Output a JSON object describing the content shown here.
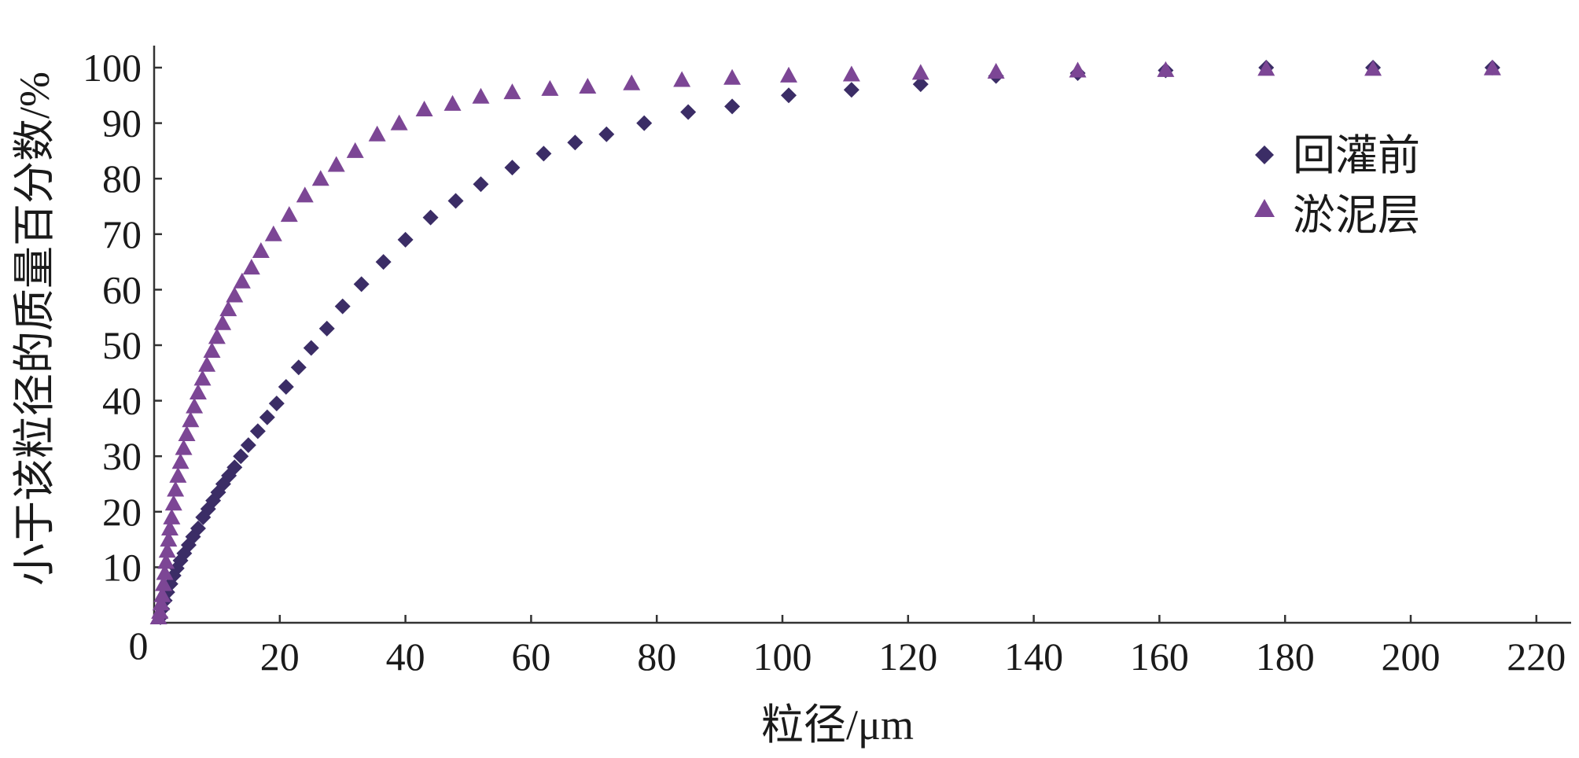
{
  "chart_data": {
    "type": "scatter",
    "xlabel": "粒径/μm",
    "ylabel": "小于该粒径的质量百分数/%",
    "origin_label": "0",
    "xlim": [
      0,
      225
    ],
    "ylim": [
      0,
      105
    ],
    "x_ticks": [
      20,
      40,
      60,
      80,
      100,
      120,
      140,
      160,
      180,
      200,
      220
    ],
    "x_tick_labels": [
      "20",
      "40",
      "60",
      "80",
      "100",
      "120",
      "140",
      "160",
      "180",
      "200",
      "220"
    ],
    "y_ticks": [
      10,
      20,
      30,
      40,
      50,
      60,
      70,
      80,
      90,
      100
    ],
    "y_tick_labels": [
      "10",
      "20",
      "30",
      "40",
      "50",
      "60",
      "70",
      "80",
      "90",
      "100"
    ],
    "legend_position": "top-right",
    "series": [
      {
        "name": "回灌前",
        "marker": "diamond",
        "color": "#3b2d66",
        "points": [
          [
            1.0,
            1.0
          ],
          [
            1.3,
            2.5
          ],
          [
            1.7,
            4.0
          ],
          [
            2.1,
            5.5
          ],
          [
            2.6,
            7.0
          ],
          [
            3.1,
            8.5
          ],
          [
            3.6,
            9.8
          ],
          [
            4.2,
            11.2
          ],
          [
            4.8,
            12.5
          ],
          [
            5.5,
            14.0
          ],
          [
            6.2,
            15.5
          ],
          [
            7.0,
            17.0
          ],
          [
            7.8,
            19.0
          ],
          [
            8.6,
            20.5
          ],
          [
            9.4,
            22.0
          ],
          [
            10.2,
            23.5
          ],
          [
            11.0,
            25.0
          ],
          [
            11.9,
            26.5
          ],
          [
            12.8,
            28.0
          ],
          [
            13.8,
            30.0
          ],
          [
            15.0,
            32.0
          ],
          [
            16.5,
            34.5
          ],
          [
            18.0,
            37.0
          ],
          [
            19.5,
            39.5
          ],
          [
            21.0,
            42.5
          ],
          [
            23.0,
            46.0
          ],
          [
            25.0,
            49.5
          ],
          [
            27.5,
            53.0
          ],
          [
            30.0,
            57.0
          ],
          [
            33.0,
            61.0
          ],
          [
            36.5,
            65.0
          ],
          [
            40.0,
            69.0
          ],
          [
            44.0,
            73.0
          ],
          [
            48.0,
            76.0
          ],
          [
            52.0,
            79.0
          ],
          [
            57.0,
            82.0
          ],
          [
            62.0,
            84.5
          ],
          [
            67.0,
            86.5
          ],
          [
            72.0,
            88.0
          ],
          [
            78.0,
            90.0
          ],
          [
            85.0,
            92.0
          ],
          [
            92.0,
            93.0
          ],
          [
            101.0,
            95.0
          ],
          [
            111.0,
            96.0
          ],
          [
            122.0,
            97.0
          ],
          [
            134.0,
            98.5
          ],
          [
            147.0,
            99.0
          ],
          [
            161.0,
            99.5
          ],
          [
            177.0,
            100.0
          ],
          [
            194.0,
            100.0
          ],
          [
            213.0,
            100.0
          ]
        ]
      },
      {
        "name": "淤泥层",
        "marker": "triangle",
        "color": "#7c4695",
        "points": [
          [
            0.7,
            1.0
          ],
          [
            0.9,
            2.0
          ],
          [
            1.1,
            3.5
          ],
          [
            1.3,
            5.0
          ],
          [
            1.5,
            7.0
          ],
          [
            1.7,
            9.0
          ],
          [
            1.9,
            11.0
          ],
          [
            2.1,
            13.0
          ],
          [
            2.3,
            15.0
          ],
          [
            2.5,
            17.0
          ],
          [
            2.8,
            19.0
          ],
          [
            3.1,
            21.5
          ],
          [
            3.4,
            24.0
          ],
          [
            3.8,
            26.5
          ],
          [
            4.2,
            29.0
          ],
          [
            4.7,
            31.5
          ],
          [
            5.2,
            34.0
          ],
          [
            5.8,
            36.5
          ],
          [
            6.4,
            39.0
          ],
          [
            7.0,
            41.5
          ],
          [
            7.7,
            44.0
          ],
          [
            8.4,
            46.5
          ],
          [
            9.2,
            49.0
          ],
          [
            10.0,
            51.5
          ],
          [
            10.9,
            54.0
          ],
          [
            11.8,
            56.5
          ],
          [
            12.8,
            59.0
          ],
          [
            14.0,
            61.5
          ],
          [
            15.5,
            64.0
          ],
          [
            17.0,
            67.0
          ],
          [
            19.0,
            70.0
          ],
          [
            21.5,
            73.5
          ],
          [
            24.0,
            77.0
          ],
          [
            26.5,
            80.0
          ],
          [
            29.0,
            82.5
          ],
          [
            32.0,
            85.0
          ],
          [
            35.5,
            88.0
          ],
          [
            39.0,
            90.0
          ],
          [
            43.0,
            92.5
          ],
          [
            47.5,
            93.5
          ],
          [
            52.0,
            94.8
          ],
          [
            57.0,
            95.6
          ],
          [
            63.0,
            96.2
          ],
          [
            69.0,
            96.6
          ],
          [
            76.0,
            97.2
          ],
          [
            84.0,
            97.8
          ],
          [
            92.0,
            98.2
          ],
          [
            101.0,
            98.6
          ],
          [
            111.0,
            98.8
          ],
          [
            122.0,
            99.1
          ],
          [
            134.0,
            99.3
          ],
          [
            147.0,
            99.5
          ],
          [
            161.0,
            99.6
          ],
          [
            177.0,
            99.8
          ],
          [
            194.0,
            99.8
          ],
          [
            213.0,
            99.9
          ]
        ]
      }
    ]
  }
}
